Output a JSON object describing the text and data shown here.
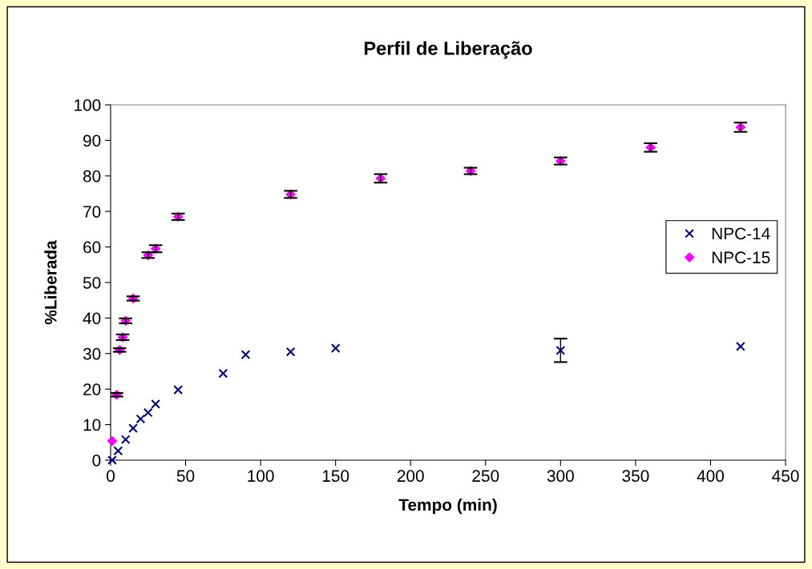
{
  "chart_data": {
    "type": "scatter",
    "title": "Perfil de Liberação",
    "xlabel": "Tempo (min)",
    "ylabel": "%Liberada",
    "xlim": [
      0,
      450
    ],
    "xticks": [
      0,
      50,
      100,
      150,
      200,
      250,
      300,
      350,
      400,
      450
    ],
    "ylim": [
      0,
      100
    ],
    "yticks": [
      0,
      10,
      20,
      30,
      40,
      50,
      60,
      70,
      80,
      90,
      100
    ],
    "grid": false,
    "legend": "right",
    "series": [
      {
        "name": "NPC-14",
        "color": "#000080",
        "marker": "cross",
        "x": [
          1,
          5,
          10,
          15,
          20,
          25,
          30,
          45,
          75,
          90,
          120,
          150,
          300,
          420
        ],
        "values": [
          0,
          2.6,
          5.8,
          9,
          11.6,
          13.4,
          15.8,
          19.8,
          24.4,
          29.7,
          30.5,
          31.5,
          30.9,
          32
        ],
        "errors": [
          null,
          null,
          null,
          null,
          null,
          null,
          null,
          null,
          null,
          null,
          null,
          null,
          3.3,
          null
        ]
      },
      {
        "name": "NPC-15",
        "color": "#ff00ff",
        "marker": "diamond",
        "x": [
          1,
          4,
          6,
          8,
          10,
          15,
          25,
          30,
          45,
          120,
          180,
          240,
          300,
          360,
          420
        ],
        "values": [
          5.4,
          18.4,
          31,
          34.6,
          39.2,
          45.5,
          57.7,
          59.5,
          68.5,
          74.8,
          79.3,
          81.4,
          84.2,
          88,
          93.7
        ],
        "errors": [
          null,
          0.5,
          0.5,
          0.8,
          0.7,
          0.6,
          0.8,
          1,
          0.9,
          1,
          1.2,
          0.9,
          1,
          1.2,
          1.3
        ]
      }
    ]
  }
}
